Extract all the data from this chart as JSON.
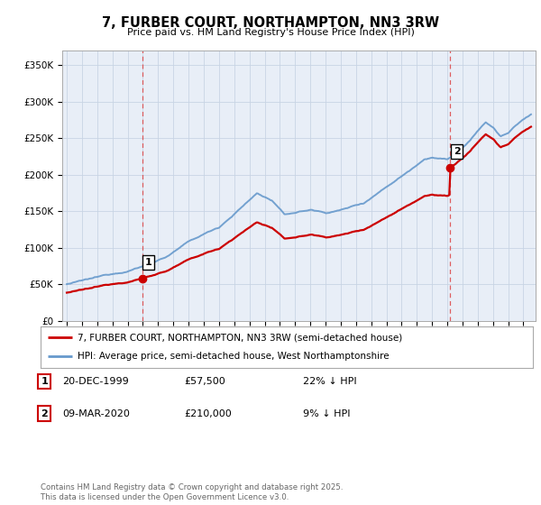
{
  "title": "7, FURBER COURT, NORTHAMPTON, NN3 3RW",
  "subtitle": "Price paid vs. HM Land Registry's House Price Index (HPI)",
  "ylabel_ticks": [
    "£0",
    "£50K",
    "£100K",
    "£150K",
    "£200K",
    "£250K",
    "£300K",
    "£350K"
  ],
  "ytick_vals": [
    0,
    50000,
    100000,
    150000,
    200000,
    250000,
    300000,
    350000
  ],
  "ylim": [
    0,
    370000
  ],
  "xlim_start": 1994.7,
  "xlim_end": 2025.8,
  "sale1_x": 1999.97,
  "sale1_price": 57500,
  "sale2_x": 2020.18,
  "sale2_price": 210000,
  "property_color": "#cc0000",
  "hpi_color": "#6699cc",
  "chart_bg": "#e8eef7",
  "fig_bg": "#ffffff",
  "grid_color": "#c8d4e4",
  "vline_color": "#dd4444",
  "legend_property": "7, FURBER COURT, NORTHAMPTON, NN3 3RW (semi-detached house)",
  "legend_hpi": "HPI: Average price, semi-detached house, West Northamptonshire",
  "annotation1_date": "20-DEC-1999",
  "annotation1_price": "£57,500",
  "annotation1_hpi": "22% ↓ HPI",
  "annotation2_date": "09-MAR-2020",
  "annotation2_price": "£210,000",
  "annotation2_hpi": "9% ↓ HPI",
  "footnote": "Contains HM Land Registry data © Crown copyright and database right 2025.\nThis data is licensed under the Open Government Licence v3.0."
}
